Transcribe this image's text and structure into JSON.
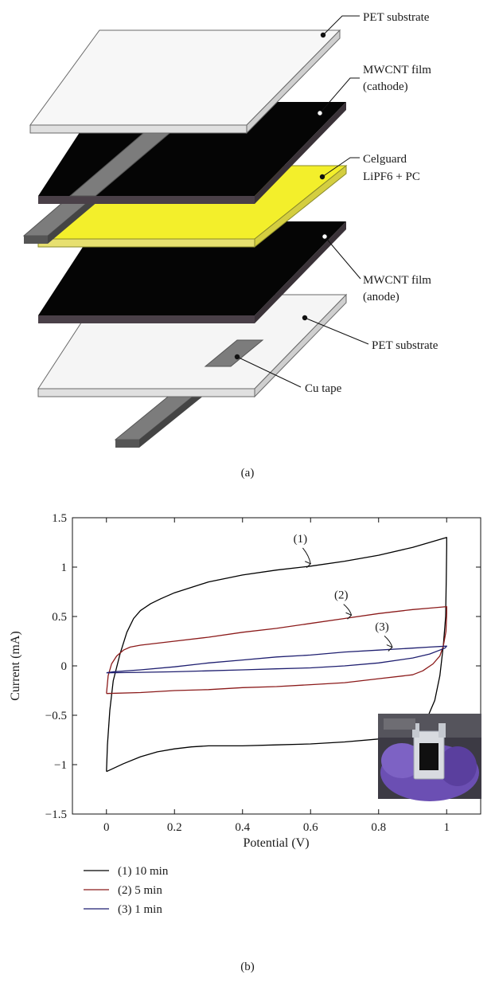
{
  "diagram": {
    "caption": "(a)",
    "layers": [
      {
        "lines": [
          "PET substrate"
        ],
        "color": "#f4f4f4"
      },
      {
        "lines": [
          "MWCNT film",
          "(cathode)"
        ],
        "color": "#060606"
      },
      {
        "lines": [
          "Celguard",
          "LiPF6 + PC"
        ],
        "color": "#f2ee2a"
      },
      {
        "lines": [
          "MWCNT film",
          "(anode)"
        ],
        "color": "#060606"
      },
      {
        "lines": [
          "PET substrate"
        ],
        "color": "#f4f4f4"
      },
      {
        "lines": [
          "Cu tape"
        ],
        "color": "#7a7a7a"
      }
    ]
  },
  "chart_data": {
    "type": "line",
    "caption": "(b)",
    "xlabel": "Potential (V)",
    "ylabel": "Current (mA)",
    "xlim": [
      -0.1,
      1.1
    ],
    "ylim": [
      -1.5,
      1.5
    ],
    "xticks": [
      0,
      0.2,
      0.4,
      0.6,
      0.8,
      1
    ],
    "xtick_labels": [
      "0",
      "0.2",
      "0.4",
      "0.6",
      "0.8",
      "1"
    ],
    "yticks": [
      -1.5,
      -1,
      -0.5,
      0,
      0.5,
      1,
      1.5
    ],
    "ytick_labels": [
      "−1.5",
      "−1",
      "−0.5",
      "0",
      "0.5",
      "1",
      "1.5"
    ],
    "grid": false,
    "legend_position": "below",
    "series": [
      {
        "name": "(1) 10 min",
        "marker": "(1)",
        "color": "#000000",
        "points": [
          [
            0,
            -1.07
          ],
          [
            0.003,
            -0.8
          ],
          [
            0.01,
            -0.45
          ],
          [
            0.02,
            -0.15
          ],
          [
            0.04,
            0.12
          ],
          [
            0.06,
            0.34
          ],
          [
            0.08,
            0.48
          ],
          [
            0.1,
            0.56
          ],
          [
            0.13,
            0.63
          ],
          [
            0.16,
            0.68
          ],
          [
            0.2,
            0.74
          ],
          [
            0.3,
            0.85
          ],
          [
            0.4,
            0.92
          ],
          [
            0.5,
            0.97
          ],
          [
            0.6,
            1.01
          ],
          [
            0.7,
            1.06
          ],
          [
            0.8,
            1.12
          ],
          [
            0.9,
            1.2
          ],
          [
            0.95,
            1.25
          ],
          [
            1,
            1.3
          ],
          [
            1.0,
            1.21
          ],
          [
            0.999,
            0.9
          ],
          [
            0.997,
            0.5
          ],
          [
            0.99,
            0.2
          ],
          [
            0.98,
            -0.1
          ],
          [
            0.965,
            -0.35
          ],
          [
            0.94,
            -0.55
          ],
          [
            0.9,
            -0.67
          ],
          [
            0.85,
            -0.72
          ],
          [
            0.8,
            -0.74
          ],
          [
            0.7,
            -0.77
          ],
          [
            0.6,
            -0.79
          ],
          [
            0.5,
            -0.8
          ],
          [
            0.4,
            -0.81
          ],
          [
            0.3,
            -0.81
          ],
          [
            0.25,
            -0.82
          ],
          [
            0.2,
            -0.84
          ],
          [
            0.15,
            -0.87
          ],
          [
            0.1,
            -0.92
          ],
          [
            0.05,
            -0.99
          ],
          [
            0,
            -1.07
          ]
        ]
      },
      {
        "name": "(2) 5 min",
        "marker": "(2)",
        "color": "#8b1a1a",
        "points": [
          [
            0,
            -0.28
          ],
          [
            0.005,
            -0.1
          ],
          [
            0.015,
            0.02
          ],
          [
            0.03,
            0.1
          ],
          [
            0.05,
            0.16
          ],
          [
            0.07,
            0.19
          ],
          [
            0.1,
            0.21
          ],
          [
            0.2,
            0.25
          ],
          [
            0.3,
            0.29
          ],
          [
            0.4,
            0.34
          ],
          [
            0.5,
            0.38
          ],
          [
            0.6,
            0.43
          ],
          [
            0.7,
            0.48
          ],
          [
            0.8,
            0.53
          ],
          [
            0.9,
            0.57
          ],
          [
            0.95,
            0.585
          ],
          [
            1,
            0.6
          ],
          [
            1.0,
            0.53
          ],
          [
            0.998,
            0.35
          ],
          [
            0.99,
            0.2
          ],
          [
            0.98,
            0.1
          ],
          [
            0.96,
            0.02
          ],
          [
            0.93,
            -0.05
          ],
          [
            0.9,
            -0.09
          ],
          [
            0.8,
            -0.13
          ],
          [
            0.7,
            -0.17
          ],
          [
            0.6,
            -0.19
          ],
          [
            0.5,
            -0.21
          ],
          [
            0.4,
            -0.22
          ],
          [
            0.3,
            -0.24
          ],
          [
            0.2,
            -0.25
          ],
          [
            0.1,
            -0.27
          ],
          [
            0,
            -0.28
          ]
        ]
      },
      {
        "name": "(3) 1 min",
        "marker": "(3)",
        "color": "#1f1f70",
        "points": [
          [
            0,
            -0.07
          ],
          [
            0.02,
            -0.06
          ],
          [
            0.1,
            -0.04
          ],
          [
            0.2,
            -0.01
          ],
          [
            0.3,
            0.03
          ],
          [
            0.4,
            0.06
          ],
          [
            0.5,
            0.09
          ],
          [
            0.6,
            0.11
          ],
          [
            0.7,
            0.14
          ],
          [
            0.8,
            0.16
          ],
          [
            0.9,
            0.18
          ],
          [
            0.95,
            0.19
          ],
          [
            1,
            0.2
          ],
          [
            0.995,
            0.18
          ],
          [
            0.98,
            0.16
          ],
          [
            0.95,
            0.12
          ],
          [
            0.9,
            0.08
          ],
          [
            0.8,
            0.03
          ],
          [
            0.7,
            0.0
          ],
          [
            0.6,
            -0.02
          ],
          [
            0.5,
            -0.03
          ],
          [
            0.4,
            -0.04
          ],
          [
            0.3,
            -0.05
          ],
          [
            0.2,
            -0.06
          ],
          [
            0.1,
            -0.065
          ],
          [
            0,
            -0.07
          ]
        ]
      }
    ]
  }
}
